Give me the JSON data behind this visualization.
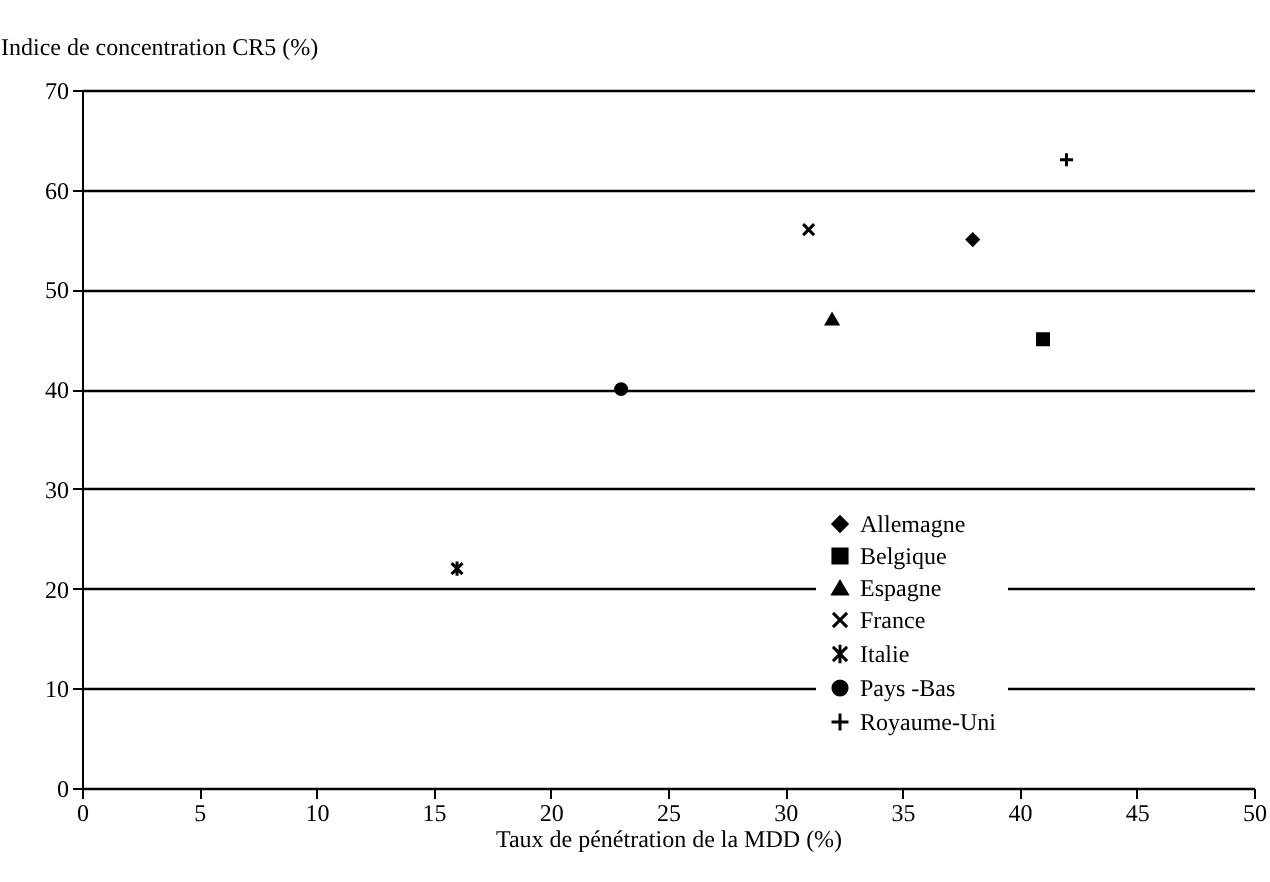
{
  "chart_data": {
    "type": "scatter",
    "xlabel": "Taux de pénétration de la MDD (%)",
    "ylabel": "Indice de concentration CR5 (%)",
    "xlim": [
      0,
      50
    ],
    "xticks": [
      0,
      5,
      10,
      15,
      20,
      25,
      30,
      35,
      40,
      45,
      50
    ],
    "ylim": [
      0,
      70
    ],
    "yticks": [
      0,
      10,
      20,
      30,
      40,
      50,
      60,
      70
    ],
    "grid": "y",
    "legend": "bottom right",
    "series": [
      {
        "name": "Allemagne",
        "color": "#000000",
        "marker": "diamond",
        "x": [
          38
        ],
        "values": [
          55
        ]
      },
      {
        "name": "Belgique",
        "color": "#000000",
        "marker": "square",
        "x": [
          41
        ],
        "values": [
          45
        ]
      },
      {
        "name": "Espagne",
        "color": "#000000",
        "marker": "triangle",
        "x": [
          32
        ],
        "values": [
          47
        ]
      },
      {
        "name": "France",
        "color": "#000000",
        "marker": "x",
        "x": [
          31
        ],
        "values": [
          56
        ]
      },
      {
        "name": "Italie",
        "color": "#000000",
        "marker": "cross",
        "x": [
          16
        ],
        "values": [
          22
        ]
      },
      {
        "name": "Pays -Bas",
        "color": "#000000",
        "marker": "circle",
        "x": [
          23
        ],
        "values": [
          40
        ]
      },
      {
        "name": "Royaume-Uni",
        "color": "#000000",
        "marker": "plus",
        "x": [
          42
        ],
        "values": [
          63
        ]
      }
    ]
  }
}
